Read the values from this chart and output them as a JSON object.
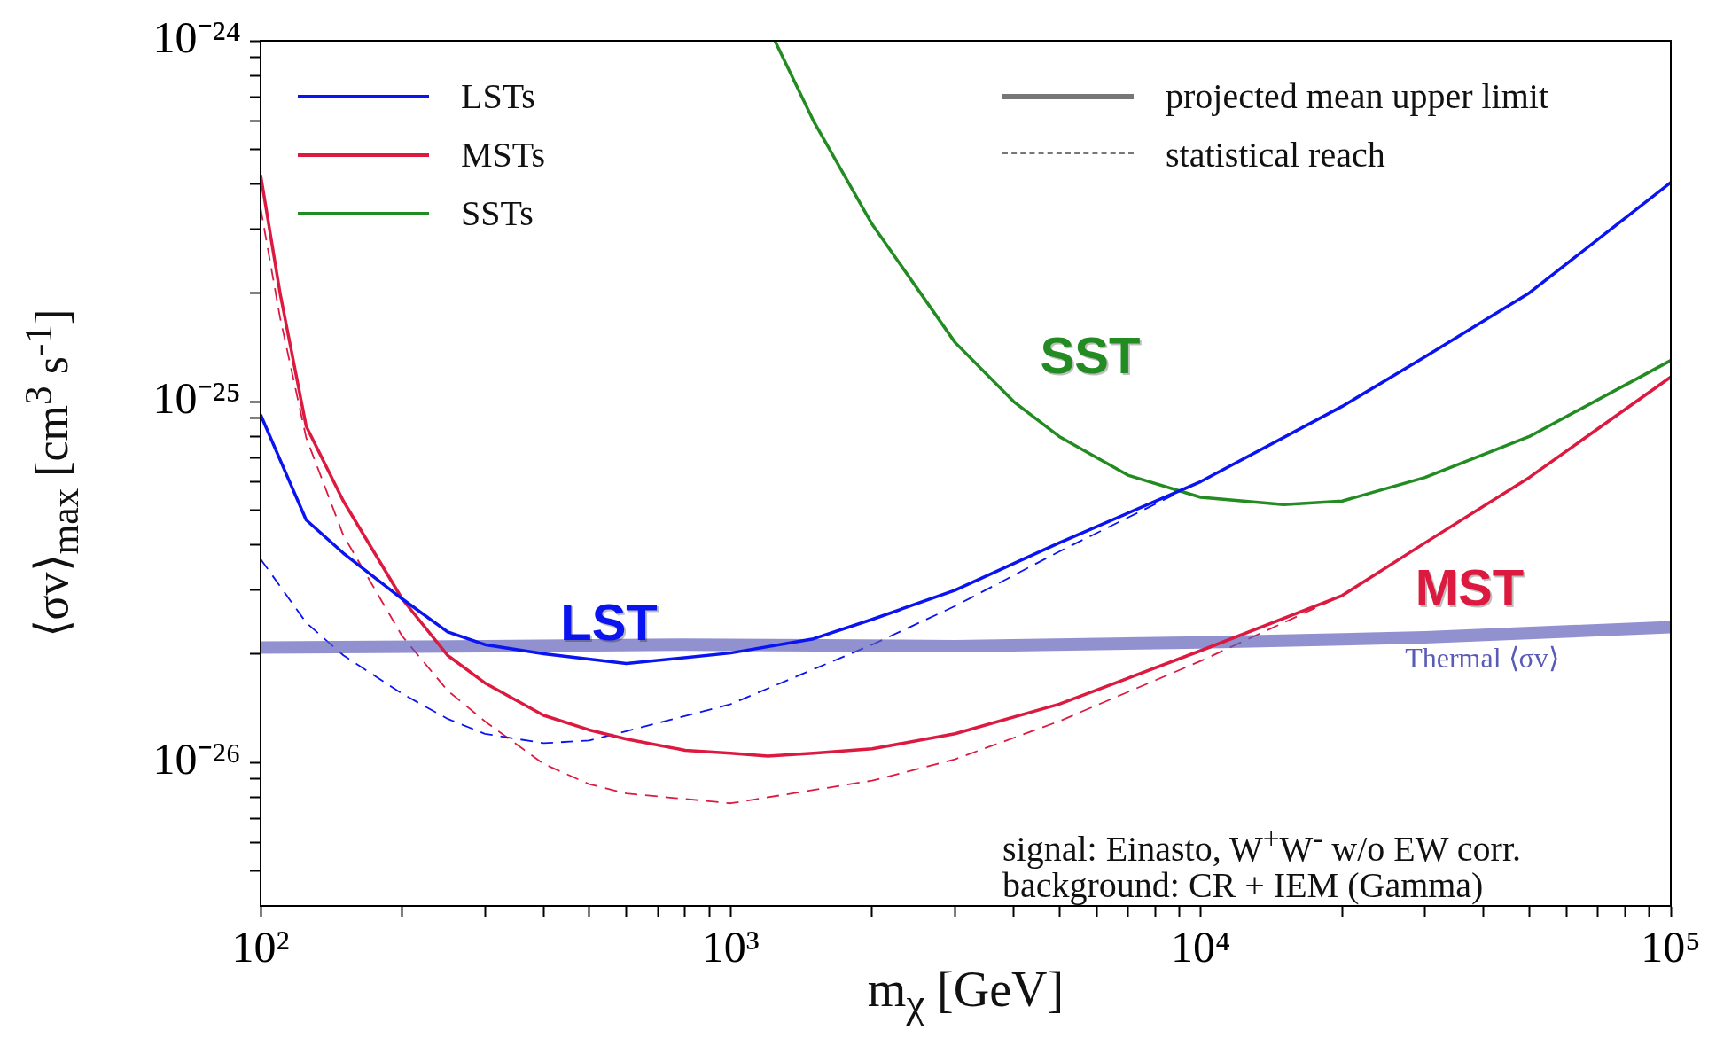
{
  "chart_data": {
    "type": "line",
    "xlabel": "m$_{χ}$ [GeV]",
    "ylabel": "⟨σv⟩$_{max}$ [cm$^{3}$ s$^{-1}$]",
    "log": "xy",
    "legend": "top left",
    "xlim": [
      100,
      100000
    ],
    "ylim": [
      4e-27,
      1e-24
    ],
    "xticks": [
      {
        "value": 100,
        "label": "10²"
      },
      {
        "value": 200,
        "label": null
      },
      {
        "value": 300,
        "label": null
      },
      {
        "value": 400,
        "label": null
      },
      {
        "value": 500,
        "label": null
      },
      {
        "value": 600,
        "label": null
      },
      {
        "value": 700,
        "label": null
      },
      {
        "value": 800,
        "label": null
      },
      {
        "value": 900,
        "label": null
      },
      {
        "value": 1000,
        "label": "10³"
      },
      {
        "value": 2000,
        "label": null
      },
      {
        "value": 3000,
        "label": null
      },
      {
        "value": 4000,
        "label": null
      },
      {
        "value": 5000,
        "label": null
      },
      {
        "value": 6000,
        "label": null
      },
      {
        "value": 7000,
        "label": null
      },
      {
        "value": 8000,
        "label": null
      },
      {
        "value": 9000,
        "label": null
      },
      {
        "value": 10000,
        "label": "10⁴"
      },
      {
        "value": 20000,
        "label": null
      },
      {
        "value": 30000,
        "label": null
      },
      {
        "value": 40000,
        "label": null
      },
      {
        "value": 50000,
        "label": null
      },
      {
        "value": 60000,
        "label": null
      },
      {
        "value": 70000,
        "label": null
      },
      {
        "value": 80000,
        "label": null
      },
      {
        "value": 90000,
        "label": null
      },
      {
        "value": 100000,
        "label": "10⁵"
      }
    ],
    "yticks": [
      {
        "value": 5e-27,
        "label": null
      },
      {
        "value": 6e-27,
        "label": null
      },
      {
        "value": 7e-27,
        "label": null
      },
      {
        "value": 8e-27,
        "label": null
      },
      {
        "value": 9e-27,
        "label": null
      },
      {
        "value": 1e-26,
        "label": "10⁻²⁶"
      },
      {
        "value": 2e-26,
        "label": null
      },
      {
        "value": 3e-26,
        "label": null
      },
      {
        "value": 4e-26,
        "label": null
      },
      {
        "value": 5e-26,
        "label": null
      },
      {
        "value": 6e-26,
        "label": null
      },
      {
        "value": 7e-26,
        "label": null
      },
      {
        "value": 8e-26,
        "label": null
      },
      {
        "value": 9e-26,
        "label": null
      },
      {
        "value": 1e-25,
        "label": "10⁻²⁵"
      },
      {
        "value": 2e-25,
        "label": null
      },
      {
        "value": 3e-25,
        "label": null
      },
      {
        "value": 4e-25,
        "label": null
      },
      {
        "value": 5e-25,
        "label": null
      },
      {
        "value": 6e-25,
        "label": null
      },
      {
        "value": 7e-25,
        "label": null
      },
      {
        "value": 8e-25,
        "label": null
      },
      {
        "value": 9e-25,
        "label": null
      },
      {
        "value": 1e-24,
        "label": "10⁻²⁴"
      }
    ],
    "series": [
      {
        "name": "LSTs",
        "color": "#0a14f0",
        "line_style": "solid",
        "x": [
          100,
          110,
          125,
          150,
          200,
          250,
          300,
          400,
          600,
          1000,
          1500,
          2000,
          3000,
          5000,
          10000,
          20000,
          30000,
          50000,
          100000
        ],
        "values": [
          9.2e-26,
          6.9e-26,
          4.7e-26,
          3.8e-26,
          2.84e-26,
          2.3e-26,
          2.12e-26,
          2e-26,
          1.88e-26,
          2.01e-26,
          2.2e-26,
          2.49e-26,
          3e-26,
          4.06e-26,
          6e-26,
          9.7e-26,
          1.33e-25,
          2e-25,
          4.05e-25
        ]
      },
      {
        "name": "MSTs",
        "color": "#dc1a40",
        "line_style": "solid",
        "x": [
          100,
          110,
          125,
          150,
          200,
          250,
          300,
          400,
          500,
          600,
          800,
          1000,
          1200,
          1500,
          2000,
          3000,
          5000,
          10000,
          20000,
          30000,
          50000,
          100000
        ],
        "values": [
          4.25e-25,
          2e-25,
          8.55e-26,
          5.3e-26,
          2.84e-26,
          1.98e-26,
          1.66e-26,
          1.35e-26,
          1.23e-26,
          1.16e-26,
          1.08e-26,
          1.06e-26,
          1.04e-26,
          1.06e-26,
          1.09e-26,
          1.2e-26,
          1.45e-26,
          2.04e-26,
          2.9e-26,
          4.06e-26,
          6.16e-26,
          1.17e-25
        ]
      },
      {
        "name": "SSTs",
        "color": "#228b22",
        "line_style": "solid",
        "x": [
          1242,
          1500,
          2000,
          3000,
          4000,
          5000,
          7000,
          10000,
          15000,
          20000,
          30000,
          50000,
          100000
        ],
        "values": [
          1e-24,
          6e-25,
          3.1e-25,
          1.46e-25,
          1e-25,
          8e-26,
          6.25e-26,
          5.43e-26,
          5.18e-26,
          5.3e-26,
          6.16e-26,
          8e-26,
          1.3e-25
        ]
      },
      {
        "color": "#5a5ab8",
        "line_style": "solid",
        "x": [
          100,
          300,
          800,
          3000,
          10000,
          30000,
          100000
        ],
        "values": [
          2.08e-26,
          2.1e-26,
          2.12e-26,
          2.1e-26,
          2.15e-26,
          2.22e-26,
          2.37e-26
        ]
      },
      {
        "color": "#0a14f0",
        "line_style": "dashed",
        "x": [
          100,
          125,
          150,
          200,
          250,
          300,
          400,
          500,
          600,
          1000,
          2000,
          3000,
          5000,
          10000,
          20000,
          30000,
          50000,
          100000
        ],
        "values": [
          3.66e-26,
          2.44e-26,
          1.98e-26,
          1.55e-26,
          1.32e-26,
          1.2e-26,
          1.13e-26,
          1.15e-26,
          1.22e-26,
          1.45e-26,
          2.12e-26,
          2.71e-26,
          3.84e-26,
          6e-26,
          9.7e-26,
          1.33e-25,
          2e-25,
          4.05e-25
        ]
      },
      {
        "color": "#dc1a40",
        "line_style": "dashed",
        "x": [
          100,
          110,
          125,
          150,
          200,
          250,
          300,
          400,
          500,
          600,
          1000,
          2000,
          3000,
          5000,
          10000,
          20000,
          30000,
          50000,
          100000
        ],
        "values": [
          3.44e-25,
          1.71e-25,
          7.95e-26,
          4.26e-26,
          2.24e-26,
          1.58e-26,
          1.3e-26,
          9.9e-27,
          8.7e-27,
          8.2e-27,
          7.7e-27,
          8.9e-27,
          1.02e-26,
          1.3e-26,
          1.91e-26,
          2.9e-26,
          4.06e-26,
          6.16e-26,
          1.17e-25
        ]
      }
    ],
    "annotations": [
      "projected mean upper limit",
      "statistical reach",
      "signal: Einasto, W$^{+}$W$^{-}$ w/o EW corr.",
      "background: CR + IEM (Gamma)",
      "LST",
      "MST",
      "SST",
      "Thermal ⟨σv⟩"
    ]
  }
}
